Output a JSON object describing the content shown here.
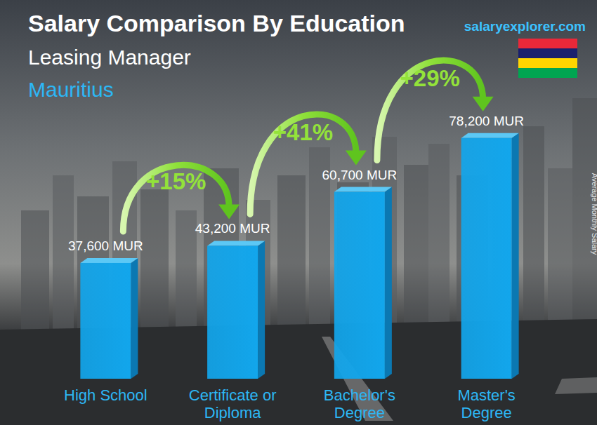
{
  "chart_data": {
    "type": "bar",
    "title": "Salary Comparison By Education",
    "subtitle": "Leasing Manager",
    "region": "Mauritius",
    "source": "salaryexplorer.com",
    "y_label": "Average Monthly Salary",
    "categories": [
      "High School",
      "Certificate or Diploma",
      "Bachelor's Degree",
      "Master's Degree"
    ],
    "values": [
      37600,
      43200,
      60700,
      78200
    ],
    "value_labels": [
      "37,600 MUR",
      "43,200 MUR",
      "60,700 MUR",
      "78,200 MUR"
    ],
    "annotations": [
      "+15%",
      "+41%",
      "+29%"
    ],
    "color": "#12a6ec",
    "data_labels": true,
    "tick_labels": false,
    "ylim": [
      0,
      90000
    ]
  }
}
